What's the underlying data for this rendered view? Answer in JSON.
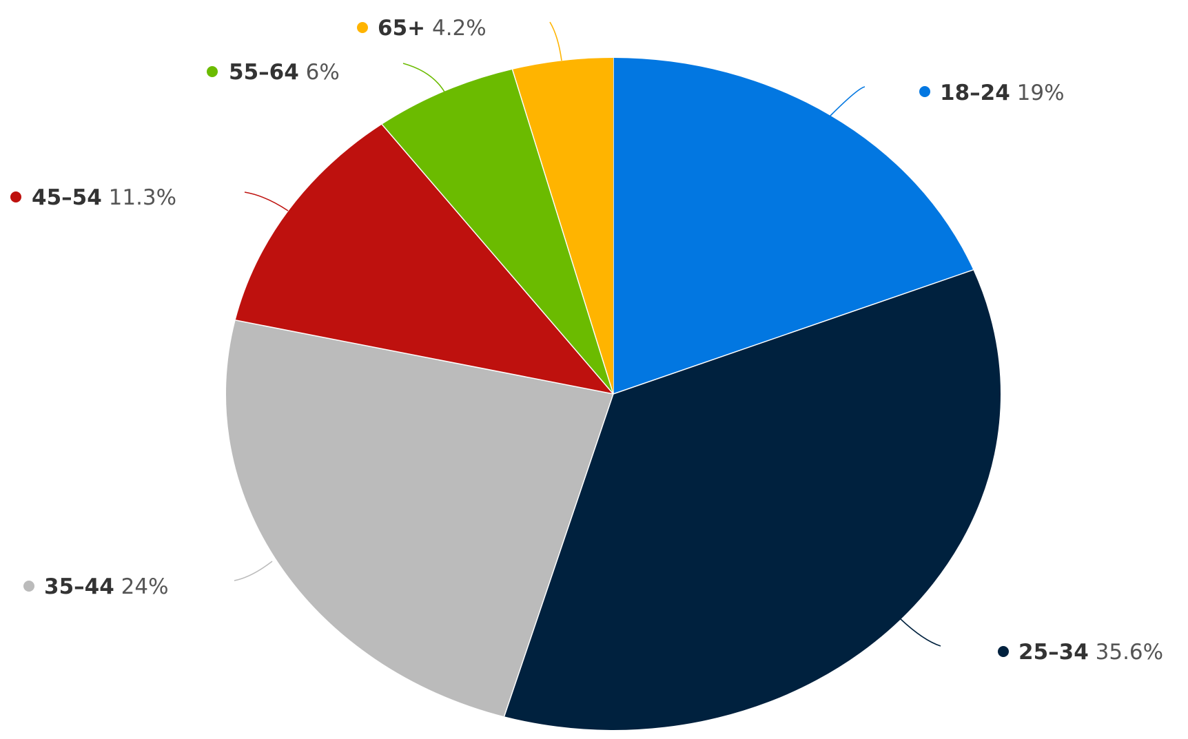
{
  "chart_data": {
    "type": "pie",
    "categories": [
      "18-24",
      "25-34",
      "35-44",
      "45-54",
      "55-64",
      "65+"
    ],
    "values": [
      19,
      35.6,
      24,
      11.3,
      6,
      4.2
    ],
    "value_labels": [
      "19%",
      "35.6%",
      "24%",
      "11.3%",
      "6%",
      "4.2%"
    ],
    "colors": [
      "#0277E1",
      "#00213E",
      "#BBBBBB",
      "#BE110E",
      "#6BBB00",
      "#FFB400"
    ],
    "start_angle": "top",
    "direction": "clockwise",
    "legend": "none",
    "data_labels": "outside with leader lines"
  }
}
